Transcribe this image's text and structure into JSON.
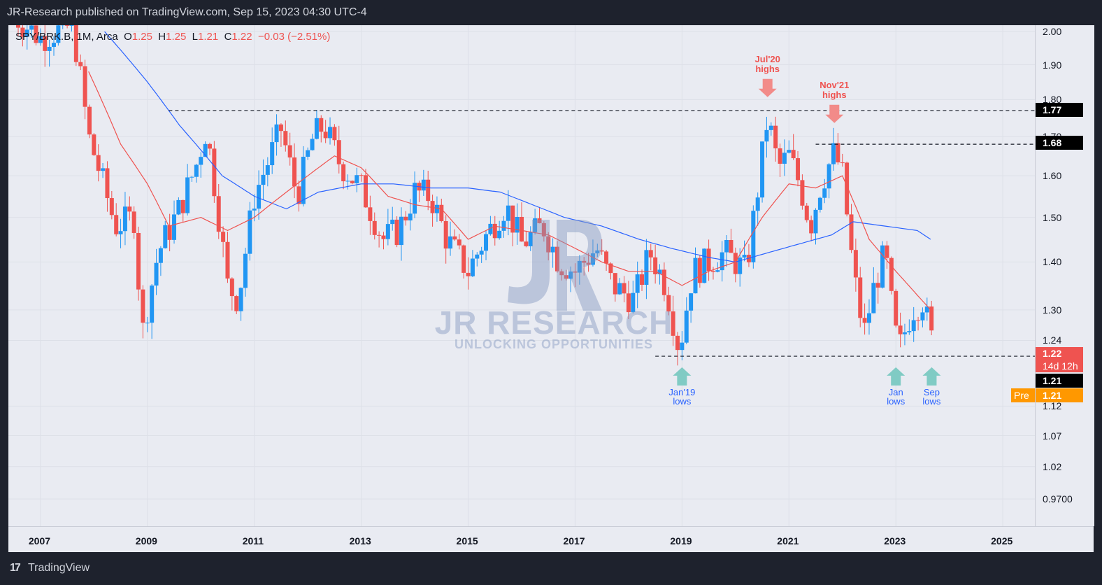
{
  "header": {
    "title": "JR-Research published on TradingView.com, Sep 15, 2023 04:30 UTC-4"
  },
  "legend": {
    "symbol": "SPY/BRK.B, 1M, Arca",
    "o_label": "O",
    "o": "1.25",
    "h_label": "H",
    "h": "1.25",
    "l_label": "L",
    "l": "1.21",
    "c_label": "C",
    "c": "1.22",
    "change": "−0.03 (−2.51%)"
  },
  "watermark": {
    "mono": "JR",
    "name": "JR RESEARCH",
    "tagline": "UNLOCKING OPPORTUNITIES"
  },
  "footer": {
    "brand": "TradingView",
    "logo": "17"
  },
  "price_tags": {
    "high1": "1.77",
    "high2": "1.68",
    "last": "1.22",
    "countdown": "14d 12h",
    "low": "1.21",
    "pre_label": "Pre",
    "pre": "1.21"
  },
  "colors": {
    "up": "#2196f3",
    "down": "#ef5350",
    "ma_fast": "#ef5350",
    "ma_slow": "#2962ff",
    "bg": "#e9ebf2"
  },
  "icons": {
    "bolt": "bolt-icon"
  },
  "chart_data": {
    "type": "candlestick",
    "y_scale": "log",
    "ylim": [
      0.93,
      2.02
    ],
    "xlim": [
      2006.4,
      2025.6
    ],
    "y_ticks": [
      "2.00",
      "1.90",
      "1.80",
      "1.70",
      "1.60",
      "1.50",
      "1.40",
      "1.30",
      "1.24",
      "1.12",
      "1.07",
      "1.02",
      "0.9700"
    ],
    "x_ticks": [
      "2007",
      "2009",
      "2011",
      "2013",
      "2015",
      "2017",
      "2019",
      "2021",
      "2023",
      "2025"
    ],
    "levels": [
      {
        "value": 1.77,
        "from": 2009.4,
        "to": 2025.5
      },
      {
        "value": 1.68,
        "from": 2021.5,
        "to": 2025.5
      },
      {
        "value": 1.21,
        "from": 2018.5,
        "to": 2025.5
      }
    ],
    "annotations": [
      {
        "text": [
          "Jul'20",
          "highs"
        ],
        "x": 2020.6,
        "arrow": "down",
        "color": "#ef5350",
        "at": 1.78
      },
      {
        "text": [
          "Nov'21",
          "highs"
        ],
        "x": 2021.85,
        "arrow": "down",
        "color": "#ef5350",
        "at": 1.71
      },
      {
        "text": [
          "Jan'19",
          "lows"
        ],
        "x": 2019.0,
        "arrow": "up",
        "color": "#26a69a",
        "at": 1.205
      },
      {
        "text": [
          "Jan",
          "lows"
        ],
        "x": 2023.0,
        "arrow": "up",
        "color": "#26a69a",
        "at": 1.205
      },
      {
        "text": [
          "Sep",
          "lows"
        ],
        "x": 2023.67,
        "arrow": "up",
        "color": "#26a69a",
        "at": 1.205
      }
    ],
    "close_anchors": [
      [
        2006.5,
        2.05
      ],
      [
        2007.0,
        1.98
      ],
      [
        2007.6,
        2.02
      ],
      [
        2007.9,
        1.7
      ],
      [
        2008.4,
        1.48
      ],
      [
        2008.75,
        1.5
      ],
      [
        2008.9,
        1.25
      ],
      [
        2009.2,
        1.42
      ],
      [
        2009.6,
        1.52
      ],
      [
        2009.9,
        1.62
      ],
      [
        2010.1,
        1.72
      ],
      [
        2010.5,
        1.35
      ],
      [
        2010.7,
        1.32
      ],
      [
        2011.0,
        1.55
      ],
      [
        2011.3,
        1.65
      ],
      [
        2011.5,
        1.72
      ],
      [
        2011.8,
        1.55
      ],
      [
        2012.1,
        1.7
      ],
      [
        2012.3,
        1.73
      ],
      [
        2012.6,
        1.63
      ],
      [
        2013.0,
        1.57
      ],
      [
        2013.4,
        1.45
      ],
      [
        2013.7,
        1.47
      ],
      [
        2014.0,
        1.56
      ],
      [
        2014.3,
        1.55
      ],
      [
        2014.6,
        1.45
      ],
      [
        2015.0,
        1.38
      ],
      [
        2015.3,
        1.45
      ],
      [
        2015.7,
        1.53
      ],
      [
        2016.0,
        1.44
      ],
      [
        2016.4,
        1.48
      ],
      [
        2016.7,
        1.4
      ],
      [
        2017.0,
        1.38
      ],
      [
        2017.4,
        1.43
      ],
      [
        2017.7,
        1.35
      ],
      [
        2018.1,
        1.32
      ],
      [
        2018.4,
        1.42
      ],
      [
        2018.7,
        1.35
      ],
      [
        2018.95,
        1.22
      ],
      [
        2019.2,
        1.38
      ],
      [
        2019.5,
        1.4
      ],
      [
        2019.8,
        1.42
      ],
      [
        2020.0,
        1.4
      ],
      [
        2020.2,
        1.38
      ],
      [
        2020.4,
        1.55
      ],
      [
        2020.6,
        1.75
      ],
      [
        2020.8,
        1.62
      ],
      [
        2021.0,
        1.65
      ],
      [
        2021.2,
        1.58
      ],
      [
        2021.4,
        1.48
      ],
      [
        2021.6,
        1.58
      ],
      [
        2021.85,
        1.66
      ],
      [
        2022.0,
        1.6
      ],
      [
        2022.2,
        1.38
      ],
      [
        2022.4,
        1.25
      ],
      [
        2022.6,
        1.35
      ],
      [
        2022.8,
        1.42
      ],
      [
        2022.95,
        1.28
      ],
      [
        2023.05,
        1.22
      ],
      [
        2023.3,
        1.3
      ],
      [
        2023.5,
        1.32
      ],
      [
        2023.65,
        1.25
      ],
      [
        2023.72,
        1.22
      ]
    ],
    "ma_fast_anchors": [
      [
        2007.9,
        1.88
      ],
      [
        2008.5,
        1.68
      ],
      [
        2009.0,
        1.58
      ],
      [
        2009.4,
        1.48
      ],
      [
        2010.0,
        1.5
      ],
      [
        2010.5,
        1.47
      ],
      [
        2011.0,
        1.5
      ],
      [
        2011.5,
        1.55
      ],
      [
        2012.0,
        1.6
      ],
      [
        2012.5,
        1.65
      ],
      [
        2013.0,
        1.62
      ],
      [
        2013.5,
        1.55
      ],
      [
        2014.0,
        1.53
      ],
      [
        2014.5,
        1.52
      ],
      [
        2015.0,
        1.45
      ],
      [
        2015.5,
        1.48
      ],
      [
        2016.0,
        1.47
      ],
      [
        2016.5,
        1.46
      ],
      [
        2017.0,
        1.43
      ],
      [
        2017.5,
        1.4
      ],
      [
        2018.0,
        1.38
      ],
      [
        2018.5,
        1.38
      ],
      [
        2019.0,
        1.35
      ],
      [
        2019.5,
        1.38
      ],
      [
        2020.0,
        1.4
      ],
      [
        2020.5,
        1.5
      ],
      [
        2021.0,
        1.58
      ],
      [
        2021.5,
        1.57
      ],
      [
        2022.0,
        1.6
      ],
      [
        2022.5,
        1.45
      ],
      [
        2023.0,
        1.38
      ],
      [
        2023.4,
        1.33
      ],
      [
        2023.65,
        1.3
      ]
    ],
    "ma_slow_anchors": [
      [
        2008.2,
        2.0
      ],
      [
        2009.0,
        1.85
      ],
      [
        2009.6,
        1.73
      ],
      [
        2010.4,
        1.6
      ],
      [
        2011.0,
        1.55
      ],
      [
        2011.6,
        1.52
      ],
      [
        2012.2,
        1.56
      ],
      [
        2013.0,
        1.58
      ],
      [
        2013.6,
        1.58
      ],
      [
        2014.3,
        1.57
      ],
      [
        2015.0,
        1.57
      ],
      [
        2015.6,
        1.56
      ],
      [
        2016.2,
        1.53
      ],
      [
        2016.8,
        1.5
      ],
      [
        2017.5,
        1.48
      ],
      [
        2018.2,
        1.45
      ],
      [
        2018.8,
        1.43
      ],
      [
        2019.5,
        1.41
      ],
      [
        2020.0,
        1.4
      ],
      [
        2020.6,
        1.42
      ],
      [
        2021.2,
        1.44
      ],
      [
        2021.8,
        1.46
      ],
      [
        2022.2,
        1.49
      ],
      [
        2022.8,
        1.48
      ],
      [
        2023.4,
        1.47
      ],
      [
        2023.65,
        1.45
      ]
    ]
  }
}
